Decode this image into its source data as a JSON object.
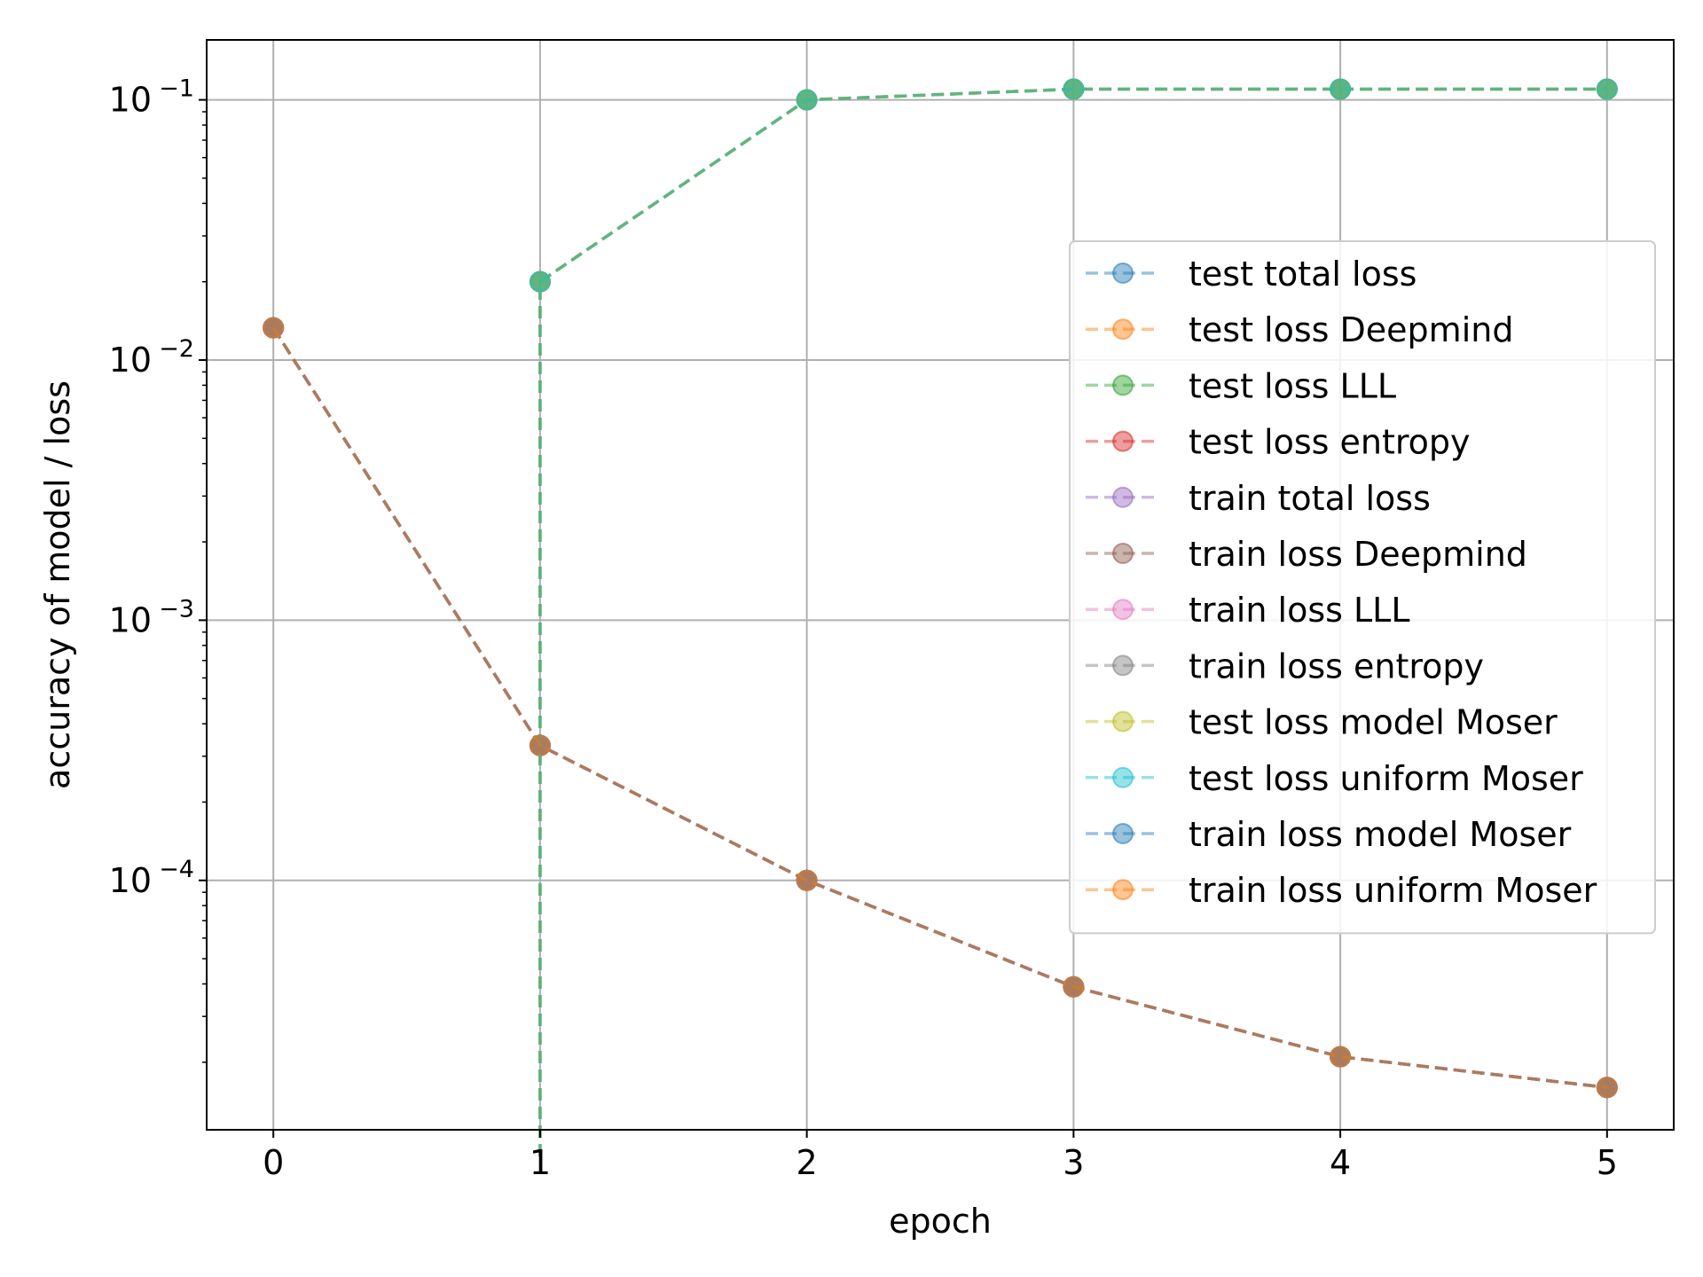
{
  "chart_data": {
    "type": "line",
    "title": "",
    "xlabel": "epoch",
    "ylabel": "accuracy of model / loss",
    "x": [
      0,
      1,
      2,
      3,
      4,
      5
    ],
    "xticks": [
      "0",
      "1",
      "2",
      "3",
      "4",
      "5"
    ],
    "xlim": [
      -0.25,
      5.25
    ],
    "yscale": "log",
    "ylim": [
      1.1e-05,
      0.17
    ],
    "yticks": [
      {
        "value": 0.1,
        "label": "10",
        "exp": "−1"
      },
      {
        "value": 0.01,
        "label": "10",
        "exp": "−2"
      },
      {
        "value": 0.001,
        "label": "10",
        "exp": "−3"
      },
      {
        "value": 0.0001,
        "label": "10",
        "exp": "−4"
      }
    ],
    "grid": true,
    "legend_position": "center-right",
    "series": [
      {
        "name": "test total loss",
        "color": "#1f77b4",
        "values": [
          null,
          0.02,
          0.1,
          0.11,
          0.11,
          0.11
        ]
      },
      {
        "name": "test loss Deepmind",
        "color": "#ff7f0e",
        "values": [
          null,
          0.02,
          0.1,
          0.11,
          0.11,
          0.11
        ]
      },
      {
        "name": "test loss LLL",
        "color": "#2ca02c",
        "values": [
          null,
          0.02,
          0.1,
          0.11,
          0.11,
          0.11
        ]
      },
      {
        "name": "test loss entropy",
        "color": "#d62728",
        "values": [
          0.0133,
          0.00033,
          0.0001,
          3.9e-05,
          2.1e-05,
          1.6e-05
        ]
      },
      {
        "name": "train total loss",
        "color": "#9467bd",
        "values": [
          0.0133,
          0.00033,
          0.0001,
          3.9e-05,
          2.1e-05,
          1.6e-05
        ]
      },
      {
        "name": "train loss Deepmind",
        "color": "#8c564b",
        "values": [
          0.0133,
          0.00033,
          0.0001,
          3.9e-05,
          2.1e-05,
          1.6e-05
        ]
      },
      {
        "name": "train loss LLL",
        "color": "#e377c2",
        "values": [
          0.0133,
          0.00033,
          0.0001,
          3.9e-05,
          2.1e-05,
          1.6e-05
        ]
      },
      {
        "name": "train loss entropy",
        "color": "#7f7f7f",
        "values": [
          0.0133,
          0.00033,
          0.0001,
          3.9e-05,
          2.1e-05,
          1.6e-05
        ]
      },
      {
        "name": "test loss model Moser",
        "color": "#bcbd22",
        "values": [
          null,
          0.02,
          0.1,
          0.11,
          0.11,
          0.11
        ]
      },
      {
        "name": "test loss uniform Moser",
        "color": "#17becf",
        "values": [
          null,
          0.02,
          0.1,
          0.11,
          0.11,
          0.11
        ]
      },
      {
        "name": "train loss model Moser",
        "color": "#1f77b4",
        "values": [
          0.0133,
          0.00033,
          0.0001,
          3.9e-05,
          2.1e-05,
          1.6e-05
        ]
      },
      {
        "name": "train loss uniform Moser",
        "color": "#ff7f0e",
        "values": [
          0.0133,
          0.00033,
          0.0001,
          3.9e-05,
          2.1e-05,
          1.6e-05
        ]
      }
    ]
  }
}
